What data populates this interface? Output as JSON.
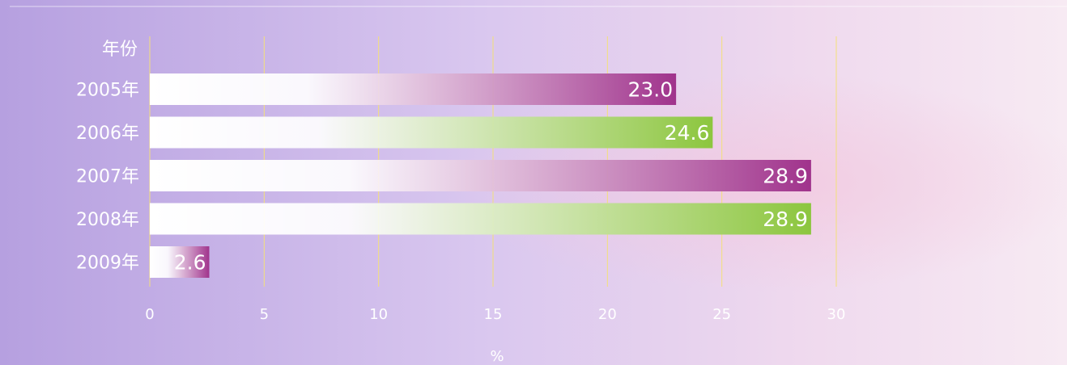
{
  "chart_data": {
    "type": "barh",
    "ylabel": "年份",
    "xlabel": "%",
    "categories": [
      "2005年",
      "2006年",
      "2007年",
      "2008年",
      "2009年"
    ],
    "values": [
      23.0,
      24.6,
      28.9,
      28.9,
      2.6
    ],
    "value_labels": [
      "23.0",
      "24.6",
      "28.9",
      "28.9",
      "2.6"
    ],
    "colors": [
      "#a0338c",
      "#8cc63e",
      "#a0338c",
      "#8cc63e",
      "#a0338c"
    ],
    "xlim": [
      0,
      30
    ],
    "xticks": [
      0,
      5,
      10,
      15,
      20,
      25,
      30
    ],
    "grid": true,
    "grid_color": "#f3e07a"
  }
}
